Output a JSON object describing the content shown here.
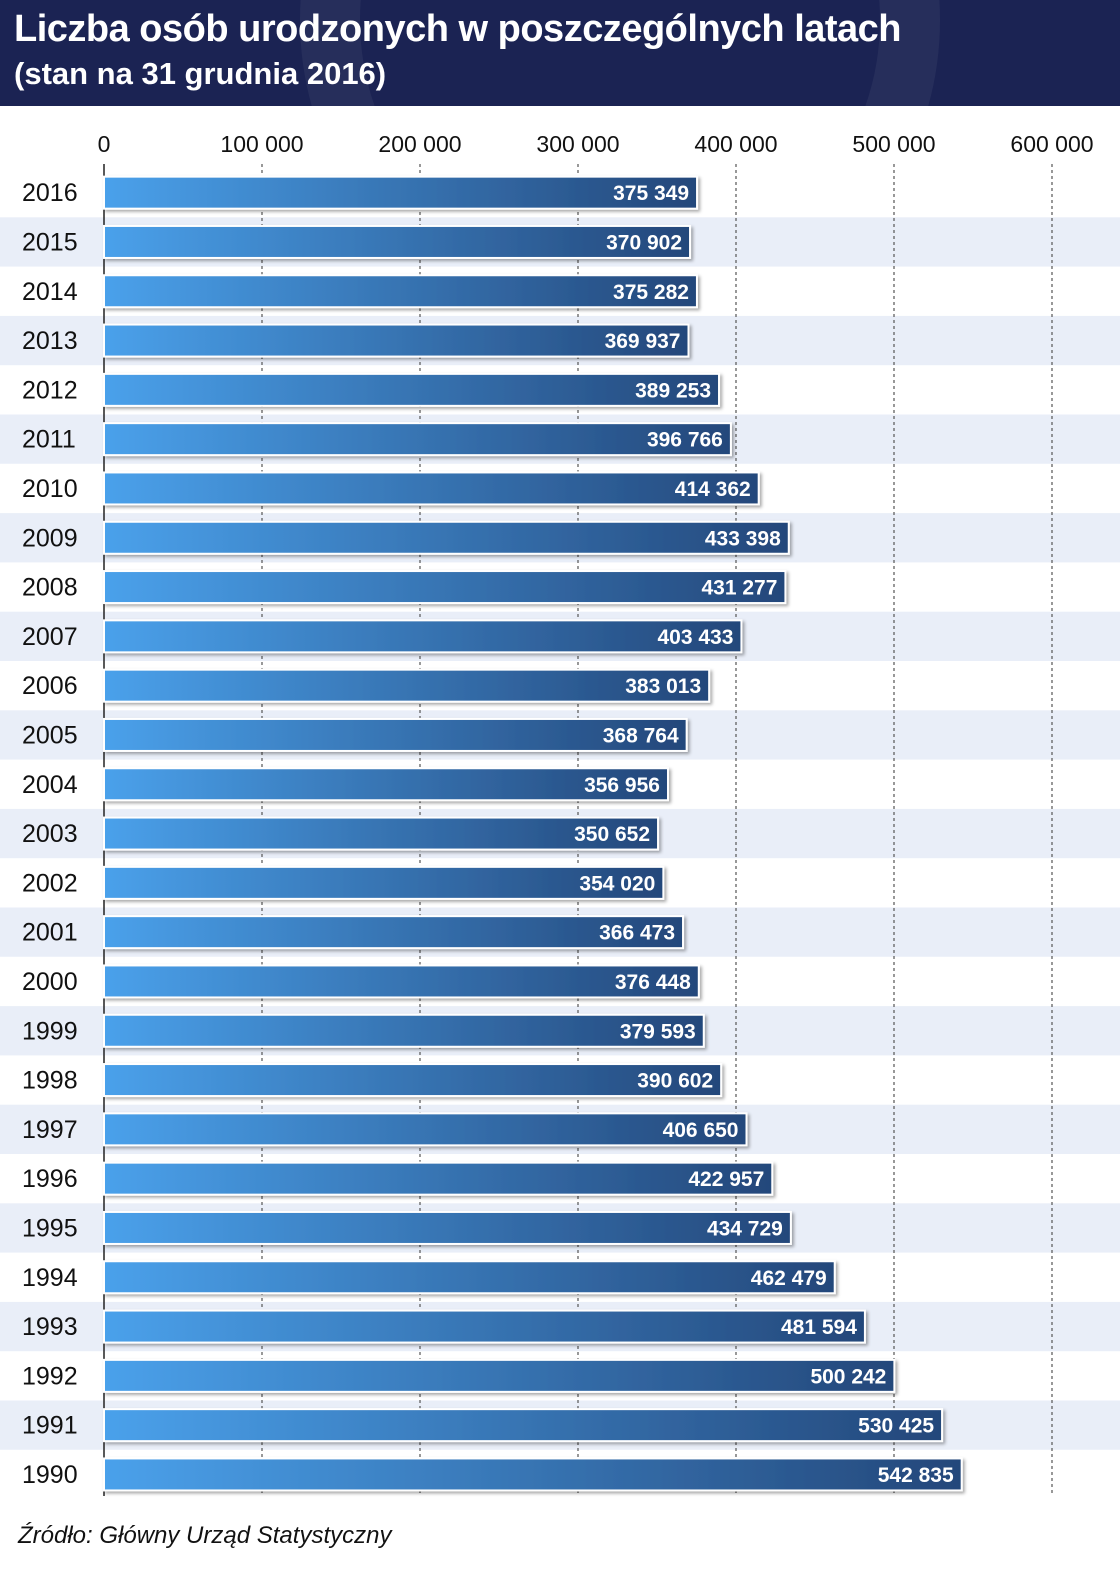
{
  "header": {
    "title": "Liczba osób urodzonych w poszczególnych latach",
    "subtitle": "(stan na 31 grudnia 2016)"
  },
  "source": "Źródło: Główny Urząd Statystyczny",
  "colors": {
    "header_bg": "#1b2353",
    "bar_start": "#4aa1eb",
    "bar_end": "#24477a",
    "band": "#e9eef8"
  },
  "chart_data": {
    "type": "bar",
    "orientation": "horizontal",
    "title": "Liczba osób urodzonych w poszczególnych latach",
    "subtitle": "(stan na 31 grudnia 2016)",
    "xlim": [
      0,
      600000
    ],
    "x_ticks": [
      0,
      100000,
      200000,
      300000,
      400000,
      500000,
      600000
    ],
    "x_tick_labels": [
      "0",
      "100 000",
      "200 000",
      "300 000",
      "400 000",
      "500 000",
      "600 000"
    ],
    "x_axis_position": "top",
    "grid": true,
    "categories": [
      "2016",
      "2015",
      "2014",
      "2013",
      "2012",
      "2011",
      "2010",
      "2009",
      "2008",
      "2007",
      "2006",
      "2005",
      "2004",
      "2003",
      "2002",
      "2001",
      "2000",
      "1999",
      "1998",
      "1997",
      "1996",
      "1995",
      "1994",
      "1993",
      "1992",
      "1991",
      "1990"
    ],
    "values": [
      375349,
      370902,
      375282,
      369937,
      389253,
      396766,
      414362,
      433398,
      431277,
      403433,
      383013,
      368764,
      356956,
      350652,
      354020,
      366473,
      376448,
      379593,
      390602,
      406650,
      422957,
      434729,
      462479,
      481594,
      500242,
      530425,
      542835
    ],
    "value_labels": [
      "375 349",
      "370 902",
      "375 282",
      "369 937",
      "389 253",
      "396 766",
      "414 362",
      "433 398",
      "431 277",
      "403 433",
      "383 013",
      "368 764",
      "356 956",
      "350 652",
      "354 020",
      "366 473",
      "376 448",
      "379 593",
      "390 602",
      "406 650",
      "422 957",
      "434 729",
      "462 479",
      "481 594",
      "500 242",
      "530 425",
      "542 835"
    ]
  }
}
